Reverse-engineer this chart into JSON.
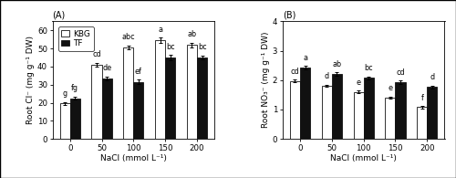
{
  "panel_A": {
    "title": "(A)",
    "ylabel": "Root Cl⁻ (mg g⁻¹ DW)",
    "xlabel": "NaCl (mmol L⁻¹)",
    "xlabels": [
      "0",
      "50",
      "100",
      "150",
      "200"
    ],
    "KBG_values": [
      19.5,
      41.0,
      50.5,
      54.5,
      52.0
    ],
    "TF_values": [
      22.5,
      33.5,
      31.5,
      45.0,
      45.0
    ],
    "KBG_errors": [
      0.8,
      1.0,
      1.2,
      1.5,
      1.2
    ],
    "TF_errors": [
      0.8,
      1.0,
      1.2,
      1.5,
      1.2
    ],
    "KBG_letters": [
      "g",
      "cd",
      "abc",
      "a",
      "ab"
    ],
    "TF_letters": [
      "fg",
      "de",
      "ef",
      "bc",
      "bc"
    ],
    "ylim": [
      0,
      65
    ],
    "yticks": [
      0,
      10,
      20,
      30,
      40,
      50,
      60
    ]
  },
  "panel_B": {
    "title": "(B)",
    "ylabel": "Root NO₃⁻ (mg g⁻¹ DW)",
    "xlabel": "NaCl (mmol L⁻¹)",
    "xlabels": [
      "0",
      "50",
      "100",
      "150",
      "200"
    ],
    "KBG_values": [
      1.97,
      1.8,
      1.6,
      1.4,
      1.08
    ],
    "TF_values": [
      2.42,
      2.2,
      2.07,
      1.92,
      1.76
    ],
    "KBG_errors": [
      0.04,
      0.04,
      0.04,
      0.04,
      0.04
    ],
    "TF_errors": [
      0.06,
      0.06,
      0.06,
      0.06,
      0.06
    ],
    "KBG_letters": [
      "cd",
      "d",
      "e",
      "e",
      "f"
    ],
    "TF_letters": [
      "a",
      "ab",
      "bc",
      "cd",
      "d"
    ],
    "ylim": [
      0,
      4.0
    ],
    "yticks": [
      0,
      1,
      2,
      3,
      4
    ]
  },
  "legend_labels": [
    "KBG",
    "TF"
  ],
  "bar_width": 0.32,
  "kbg_color": "#ffffff",
  "tf_color": "#111111",
  "edge_color": "#111111",
  "letter_fontsize": 5.8,
  "axis_fontsize": 6.5,
  "tick_fontsize": 6.2,
  "legend_fontsize": 6.5,
  "title_fontsize": 7.0
}
